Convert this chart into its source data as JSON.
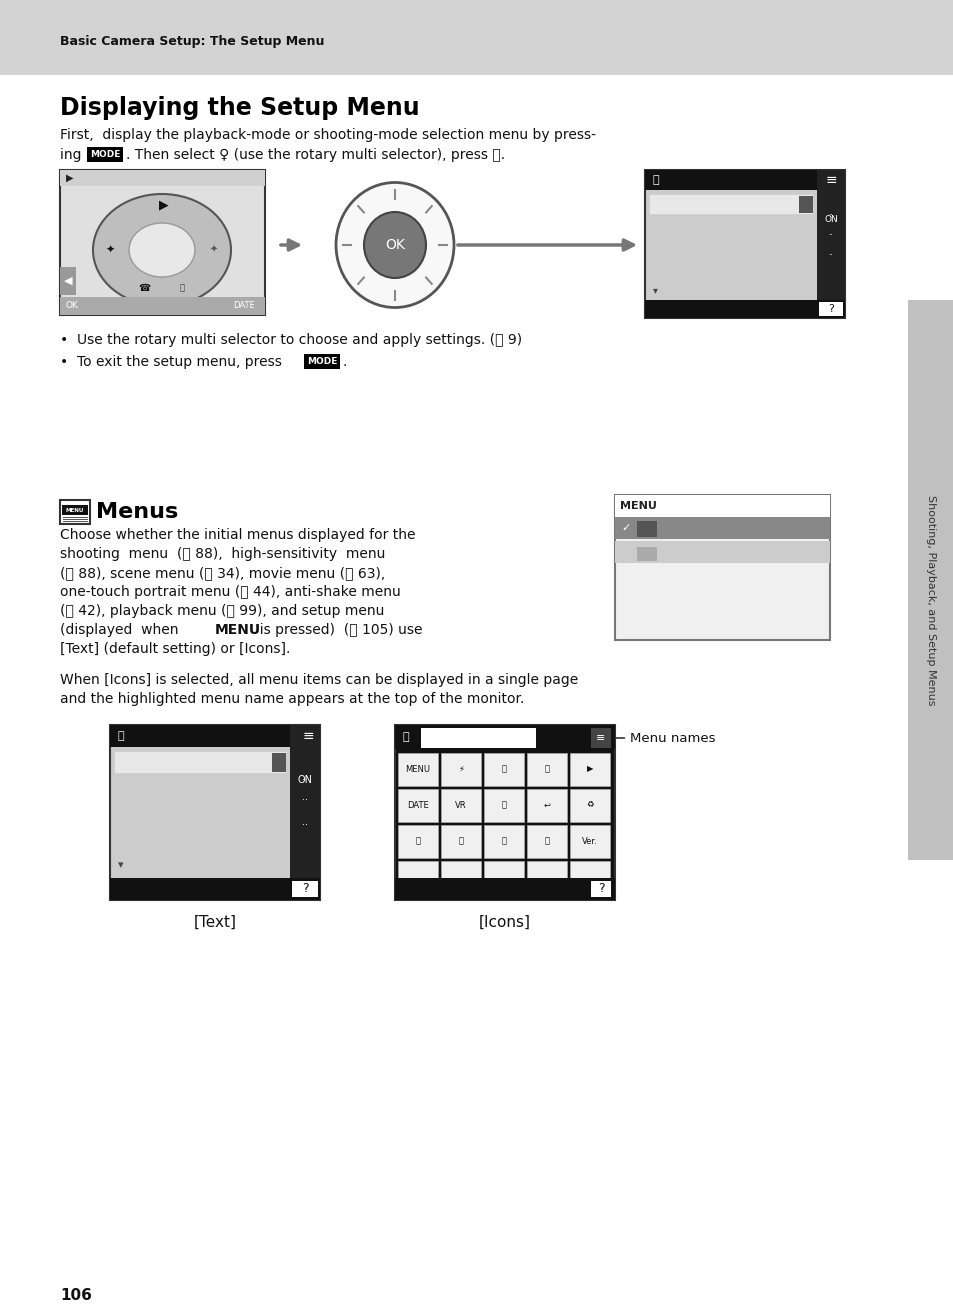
{
  "page_bg": "#ffffff",
  "header_bg": "#d3d3d3",
  "header_text": "Basic Camera Setup: The Setup Menu",
  "section1_title": "Displaying the Setup Menu",
  "section1_body1": "First,  display the playback-mode or shooting-mode selection menu by press-",
  "section1_body2_pre": "ing ",
  "section1_body2_mode": "MODE",
  "section1_body2_post": ". Then select ♀ (use the rotary multi selector), press Ⓞ.",
  "bullet1": "•  Use the rotary multi selector to choose and apply settings. (Ⓞ 9)",
  "bullet2": "•  To exit the setup menu, press ",
  "bullet2_mode": "MODE",
  "bullet2_end": ".",
  "section2_title": "Menus",
  "body2_lines": [
    "Choose whether the initial menus displayed for the",
    "shooting  menu  (Ⓞ 88),  high-sensitivity  menu",
    "(Ⓞ 88), scene menu (Ⓞ 34), movie menu (Ⓞ 63),",
    "one-touch portrait menu (Ⓞ 44), anti-shake menu",
    "(Ⓞ 42), playback menu (Ⓞ 99), and setup menu",
    "(displayed  when  MENU  is pressed)  (Ⓞ 105) use",
    "[Text] (default setting) or [Icons]."
  ],
  "body3_line1": "When [Icons] is selected, all menu items can be displayed in a single page",
  "body3_line2": "and the highlighted menu name appears at the top of the monitor.",
  "label_text": "[Text]",
  "label_icons": "[Icons]",
  "menu_names_label": "Menu names",
  "sidebar_text": "Shooting, Playback, and Setup Menus",
  "page_number": "106"
}
